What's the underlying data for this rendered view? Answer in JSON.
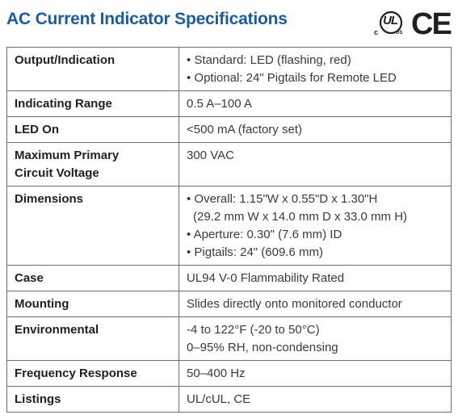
{
  "title": "AC Current Indicator Specifications",
  "certifications": {
    "ul": {
      "mark": "UL",
      "c": "c",
      "us": "US"
    },
    "ce": "CE"
  },
  "rows": [
    {
      "label": "Output/Indication",
      "values": [
        "• Standard: LED (flashing, red)",
        "• Optional: 24\" Pigtails for Remote LED"
      ]
    },
    {
      "label": "Indicating Range",
      "values": [
        "0.5 A–100 A"
      ]
    },
    {
      "label": "LED On",
      "values": [
        "<500 mA (factory set)"
      ]
    },
    {
      "label": "Maximum Primary Circuit Voltage",
      "label_lines": [
        "Maximum Primary",
        "Circuit Voltage"
      ],
      "values": [
        "300 VAC"
      ]
    },
    {
      "label": "Dimensions",
      "values": [
        "• Overall: 1.15\"W x 0.55\"D x 1.30\"H",
        "(29.2 mm W x 14.0 mm D x 33.0 mm H)",
        "• Aperture: 0.30\" (7.6 mm) ID",
        "• Pigtails: 24\" (609.6 mm)"
      ]
    },
    {
      "label": "Case",
      "values": [
        "UL94 V-0 Flammability Rated"
      ]
    },
    {
      "label": "Mounting",
      "values": [
        "Slides directly onto monitored conductor"
      ]
    },
    {
      "label": "Environmental",
      "values": [
        "-4 to 122°F (-20 to 50°C)",
        "0–95% RH, non-condensing"
      ]
    },
    {
      "label": "Frequency Response",
      "values": [
        "50–400 Hz"
      ]
    },
    {
      "label": "Listings",
      "values": [
        "UL/cUL, CE"
      ]
    }
  ],
  "colors": {
    "title": "#1c5aa6",
    "border": "#6d6e71",
    "text": "#231f20"
  }
}
